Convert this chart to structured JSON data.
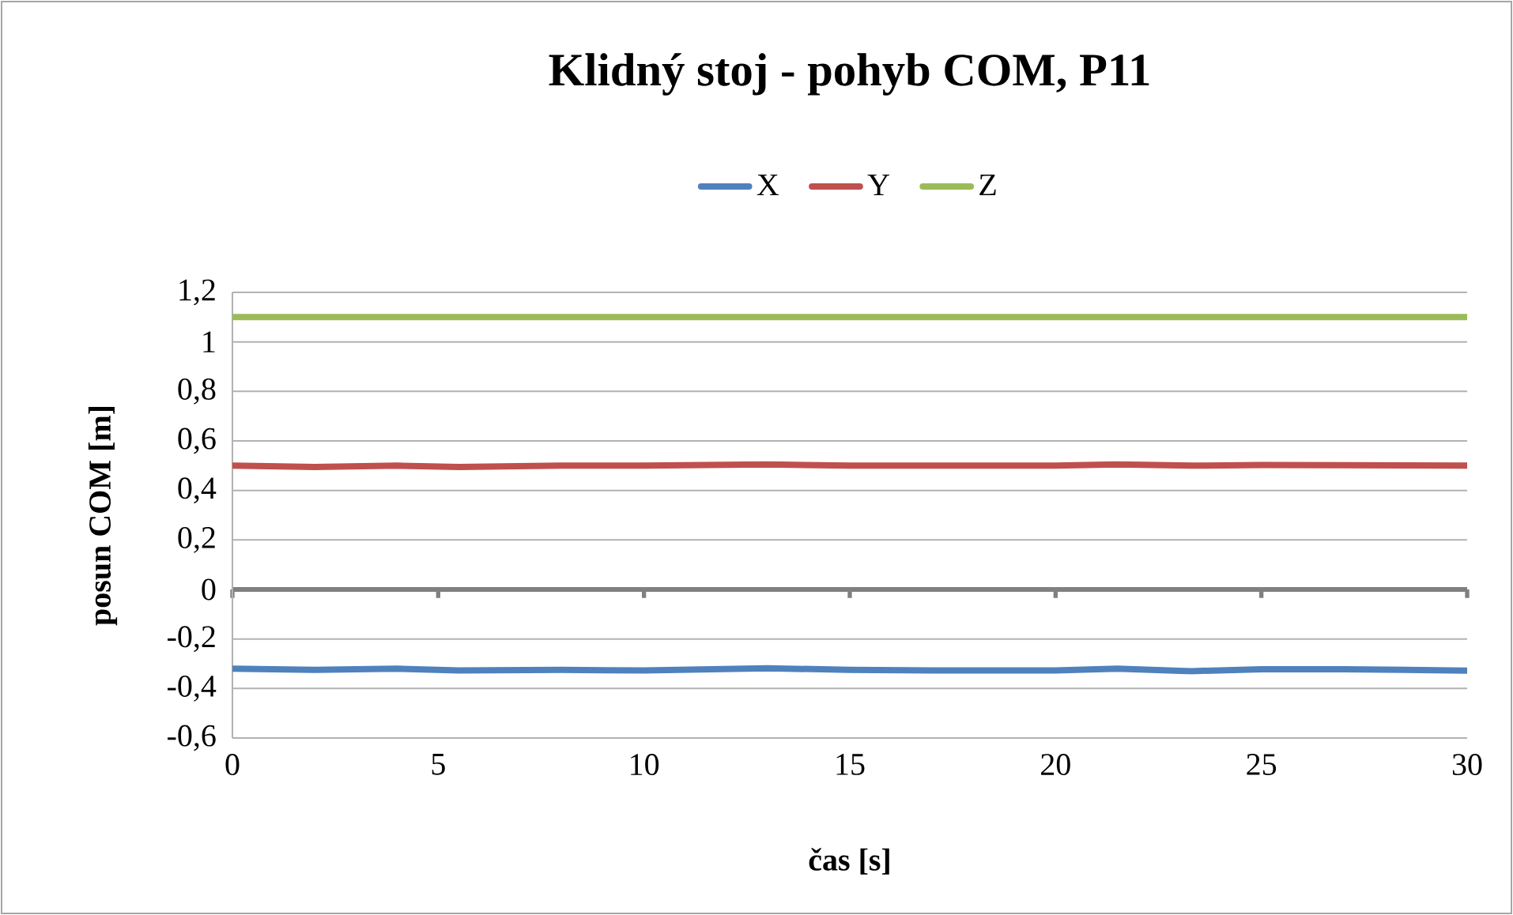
{
  "chart_data": {
    "type": "line",
    "title": "Klidný stoj - pohyb COM, P11",
    "xlabel": "čas [s]",
    "ylabel": "posun COM [m]",
    "xlim": [
      0,
      30
    ],
    "xticks": [
      0,
      5,
      10,
      15,
      20,
      25,
      30
    ],
    "ylim": [
      -0.6,
      1.2
    ],
    "yticks": [
      {
        "value": -0.6,
        "label": "-0,6"
      },
      {
        "value": -0.4,
        "label": "-0,4"
      },
      {
        "value": -0.2,
        "label": "-0,2"
      },
      0,
      {
        "value": 0.2,
        "label": "0,2"
      },
      {
        "value": 0.4,
        "label": "0,4"
      },
      {
        "value": 0.6,
        "label": "0,6"
      },
      {
        "value": 0.8,
        "label": "0,8"
      },
      1,
      {
        "value": 1.2,
        "label": "1,2"
      }
    ],
    "grid": "y",
    "legend": "top",
    "marker": "none",
    "line_style": "solid",
    "x": [
      0,
      2,
      4,
      5.5,
      8,
      10,
      13,
      15,
      17,
      20,
      21.5,
      23.3,
      25,
      27,
      30
    ],
    "series": [
      {
        "name": "X",
        "color": "#4f81bd",
        "values": [
          -0.32,
          -0.325,
          -0.32,
          -0.327,
          -0.325,
          -0.327,
          -0.318,
          -0.325,
          -0.327,
          -0.327,
          -0.32,
          -0.33,
          -0.322,
          -0.322,
          -0.328
        ]
      },
      {
        "name": "Y",
        "color": "#c0504d",
        "values": [
          0.5,
          0.495,
          0.5,
          0.495,
          0.5,
          0.5,
          0.505,
          0.5,
          0.5,
          0.5,
          0.505,
          0.5,
          0.503,
          0.502,
          0.5
        ]
      },
      {
        "name": "Z",
        "color": "#9bbb59",
        "values": [
          1.1,
          1.1,
          1.1,
          1.1,
          1.1,
          1.1,
          1.1,
          1.1,
          1.1,
          1.1,
          1.1,
          1.1,
          1.1,
          1.1,
          1.1
        ]
      }
    ]
  }
}
